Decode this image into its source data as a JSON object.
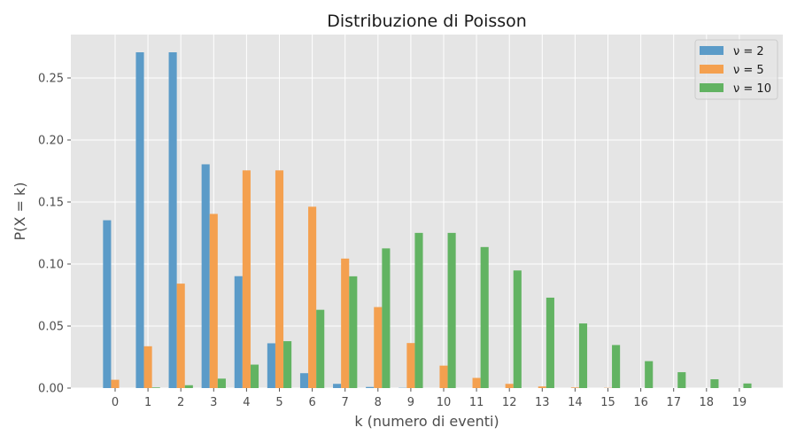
{
  "chart_data": {
    "type": "bar",
    "title": "Distribuzione di Poisson",
    "xlabel": "k (numero di eventi)",
    "ylabel": "P(X = k)",
    "categories": [
      "0",
      "1",
      "2",
      "3",
      "4",
      "5",
      "6",
      "7",
      "8",
      "9",
      "10",
      "11",
      "12",
      "13",
      "14",
      "15",
      "16",
      "17",
      "18",
      "19"
    ],
    "ylim": [
      0,
      0.285
    ],
    "yticks": [
      0.0,
      0.05,
      0.1,
      0.15,
      0.2,
      0.25
    ],
    "ytick_labels": [
      "0.00",
      "0.05",
      "0.10",
      "0.15",
      "0.20",
      "0.25"
    ],
    "grid": true,
    "legend_position": "top-right",
    "series": [
      {
        "name": "ν = 2",
        "color": "#5b9bc8",
        "values": [
          0.1353,
          0.2707,
          0.2707,
          0.1804,
          0.0902,
          0.0361,
          0.012,
          0.0034,
          0.0009,
          0.0002,
          0.0,
          0.0,
          0.0,
          0.0,
          0.0,
          0.0,
          0.0,
          0.0,
          0.0,
          0.0
        ]
      },
      {
        "name": "ν = 5",
        "color": "#f4a04f",
        "values": [
          0.0067,
          0.0337,
          0.0842,
          0.1404,
          0.1755,
          0.1755,
          0.1462,
          0.1044,
          0.0653,
          0.0363,
          0.0181,
          0.0082,
          0.0034,
          0.0013,
          0.0005,
          0.0002,
          0.0,
          0.0,
          0.0,
          0.0
        ]
      },
      {
        "name": "ν = 10",
        "color": "#62b362",
        "values": [
          0.0,
          0.0005,
          0.0023,
          0.0076,
          0.0189,
          0.0378,
          0.0631,
          0.0901,
          0.1126,
          0.1251,
          0.1251,
          0.1137,
          0.0948,
          0.0729,
          0.0521,
          0.0347,
          0.0217,
          0.0128,
          0.0071,
          0.0037
        ]
      }
    ]
  }
}
